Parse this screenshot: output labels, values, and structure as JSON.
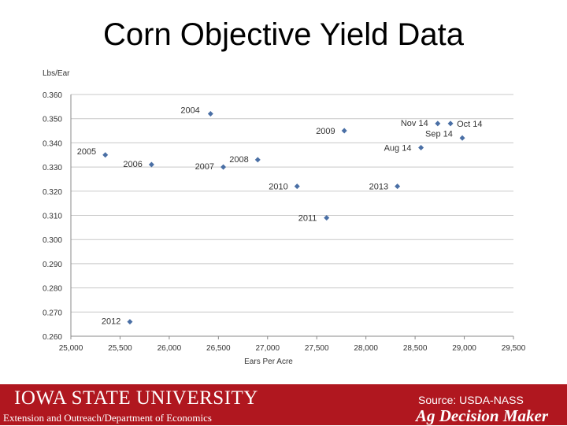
{
  "slide": {
    "title": "Corn Objective Yield Data"
  },
  "footer": {
    "university": "IOWA STATE UNIVERSITY",
    "unit": "Extension and Outreach/Department of Economics",
    "source": "Source: USDA-NASS",
    "brand": "Ag Decision Maker",
    "background": "#b0171f"
  },
  "chart_data": {
    "type": "scatter",
    "xlabel": "Ears Per Acre",
    "ylabel": "Lbs/Ear",
    "xlim": [
      25000,
      29500
    ],
    "ylim": [
      0.26,
      0.36
    ],
    "xticks": [
      "25,000",
      "25,500",
      "26,000",
      "26,500",
      "27,000",
      "27,500",
      "28,000",
      "28,500",
      "29,000",
      "29,500"
    ],
    "yticks": [
      "0.260",
      "0.270",
      "0.280",
      "0.290",
      "0.300",
      "0.310",
      "0.320",
      "0.330",
      "0.340",
      "0.350",
      "0.360"
    ],
    "grid": true,
    "marker_color": "#4a6fa5",
    "points": [
      {
        "label": "2004",
        "x": 26420,
        "y": 0.352
      },
      {
        "label": "2005",
        "x": 25350,
        "y": 0.335
      },
      {
        "label": "2006",
        "x": 25820,
        "y": 0.331
      },
      {
        "label": "2007",
        "x": 26550,
        "y": 0.33
      },
      {
        "label": "2008",
        "x": 26900,
        "y": 0.333
      },
      {
        "label": "2009",
        "x": 27780,
        "y": 0.345
      },
      {
        "label": "2010",
        "x": 27300,
        "y": 0.322
      },
      {
        "label": "2011",
        "x": 27600,
        "y": 0.309
      },
      {
        "label": "2012",
        "x": 25600,
        "y": 0.266
      },
      {
        "label": "2013",
        "x": 28320,
        "y": 0.322
      },
      {
        "label": "Aug 14",
        "x": 28560,
        "y": 0.338
      },
      {
        "label": "Sep 14",
        "x": 28980,
        "y": 0.342
      },
      {
        "label": "Nov 14",
        "x": 28730,
        "y": 0.348
      },
      {
        "label": "Oct 14",
        "x": 28860,
        "y": 0.348
      }
    ]
  }
}
